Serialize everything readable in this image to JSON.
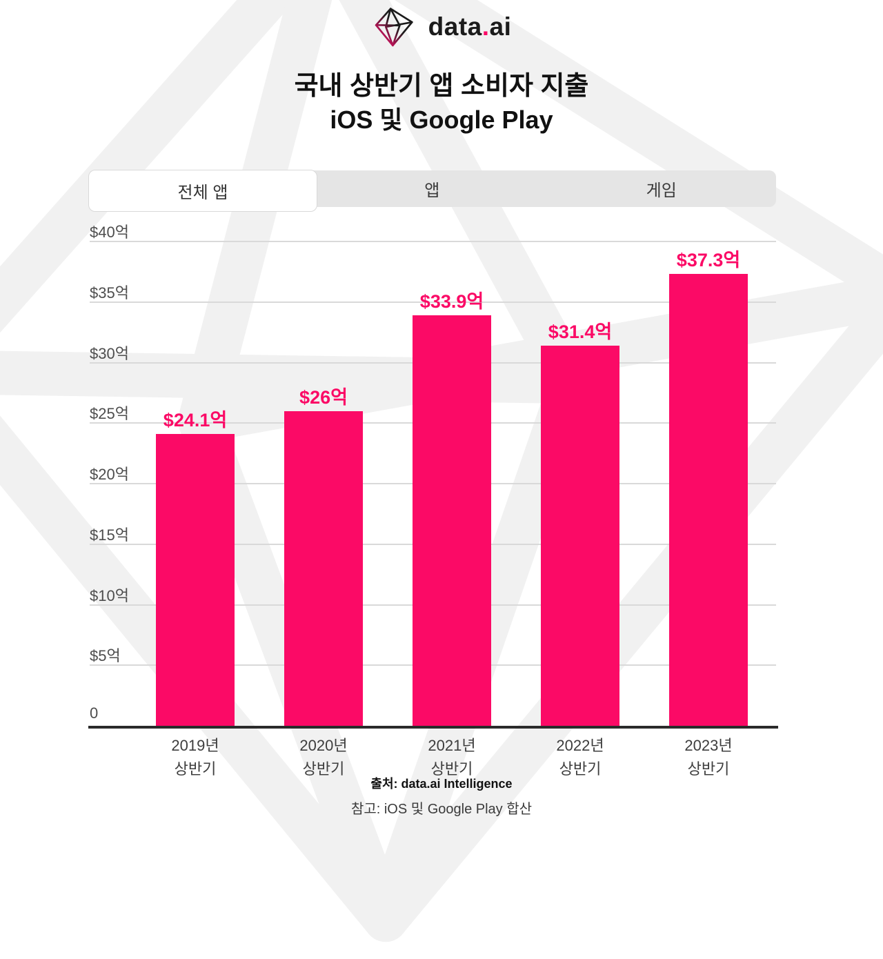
{
  "logo": {
    "word_part1": "data",
    "dot": ".",
    "word_part2": "ai"
  },
  "title": {
    "line1": "국내 상반기 앱 소비자 지출",
    "line2": "iOS 및 Google Play"
  },
  "tabs": {
    "items": [
      {
        "label": "전체 앱",
        "active": true
      },
      {
        "label": "앱",
        "active": false
      },
      {
        "label": "게임",
        "active": false
      }
    ]
  },
  "chart_data": {
    "type": "bar",
    "title": "국내 상반기 앱 소비자 지출 iOS 및 Google Play",
    "categories": [
      [
        "2019년",
        "상반기"
      ],
      [
        "2020년",
        "상반기"
      ],
      [
        "2021년",
        "상반기"
      ],
      [
        "2022년",
        "상반기"
      ],
      [
        "2023년",
        "상반기"
      ]
    ],
    "values": [
      24.1,
      26.0,
      33.9,
      31.4,
      37.3
    ],
    "value_labels": [
      "$24.1억",
      "$26억",
      "$33.9억",
      "$31.4억",
      "$37.3억"
    ],
    "ylim": [
      0,
      40
    ],
    "y_ticks": [
      {
        "value": 40,
        "label": "$40억"
      },
      {
        "value": 35,
        "label": "$35억"
      },
      {
        "value": 30,
        "label": "$30억"
      },
      {
        "value": 25,
        "label": "$25억"
      },
      {
        "value": 20,
        "label": "$20억"
      },
      {
        "value": 15,
        "label": "$15억"
      },
      {
        "value": 10,
        "label": "$10억"
      },
      {
        "value": 5,
        "label": "$5억"
      },
      {
        "value": 0,
        "label": "0"
      }
    ],
    "grid": "horizontal",
    "legend": "none",
    "bar_color": "#fb0a66"
  },
  "footer": {
    "source": "출처: data.ai Intelligence",
    "note": "참고: iOS 및 Google Play 합산"
  },
  "colors": {
    "bar": "#fb0a66",
    "value_label": "#fb0a66",
    "grid_line": "#d9d9d9",
    "axis_line": "#2b2b2b",
    "tab_bar_bg": "#e5e5e5",
    "active_tab_bg": "#ffffff",
    "watermark": "#f1f1f1",
    "logo_pink": "#ff116e",
    "text": "#1b1b1b"
  }
}
